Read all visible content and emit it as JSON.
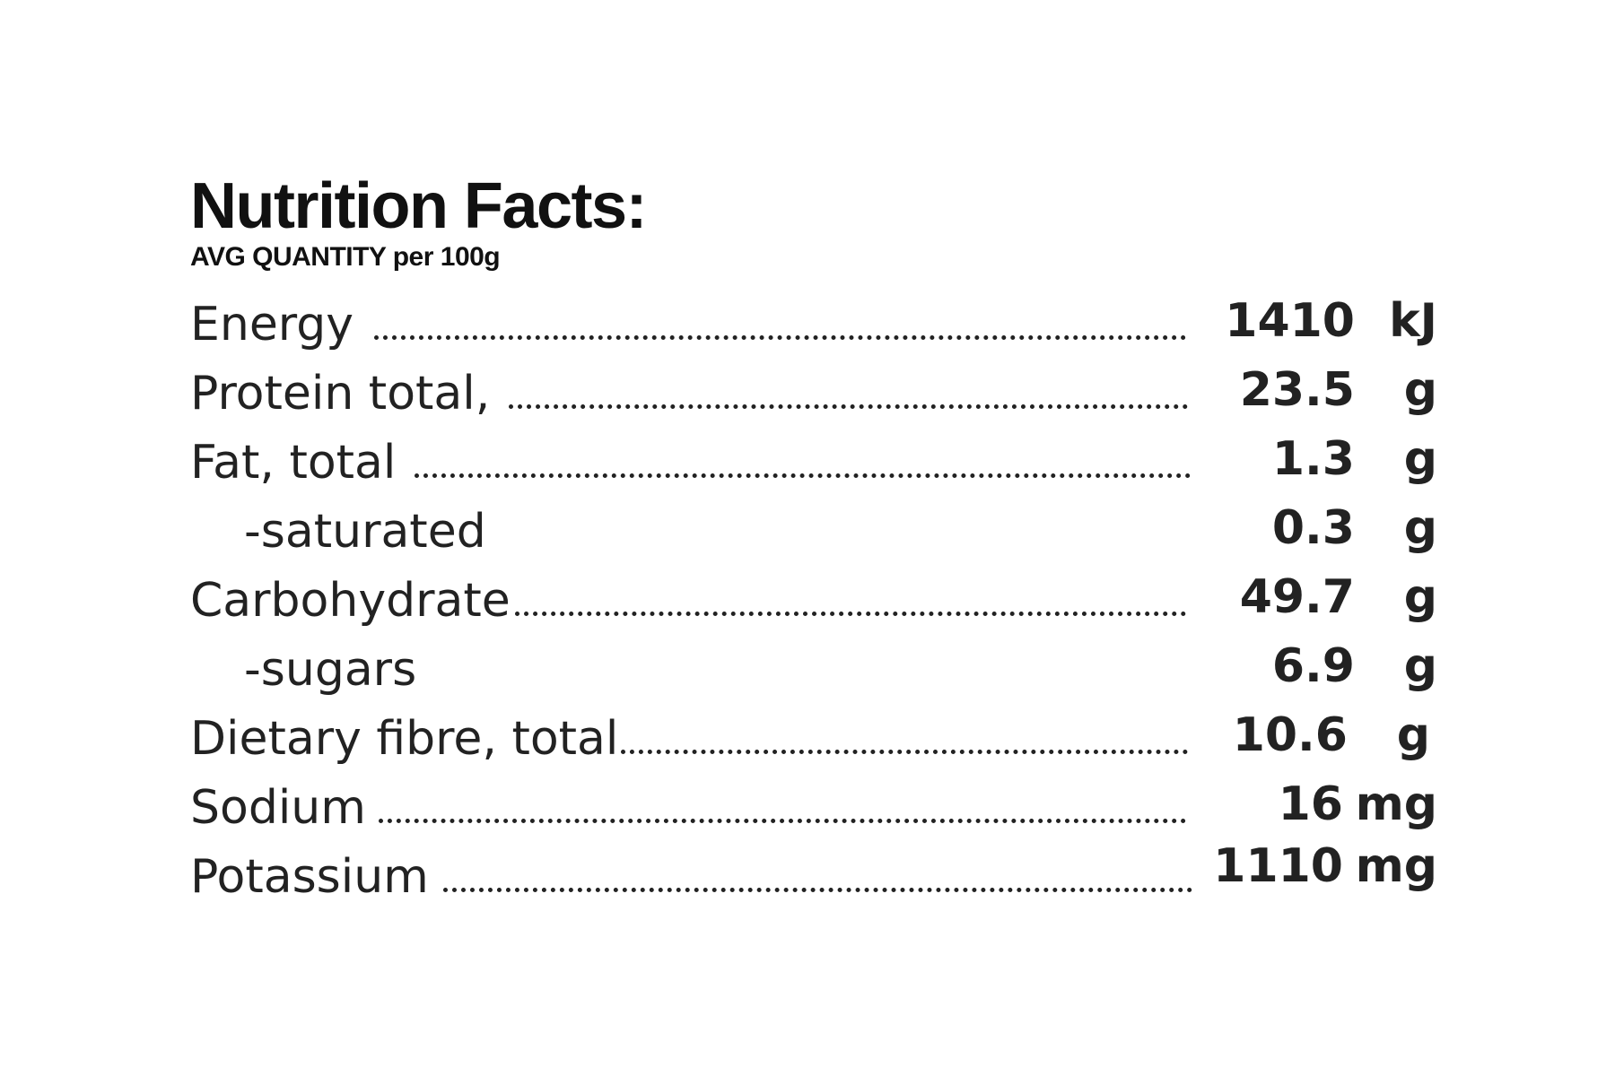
{
  "header": {
    "title": "Nutrition Facts:",
    "subtitle": "AVG QUANTITY per 100g"
  },
  "nutrients": [
    {
      "label": "Energy",
      "value": "1410",
      "unit": "kJ"
    },
    {
      "label": "Protein total,",
      "value": "23.5",
      "unit": "g"
    },
    {
      "label": "Fat, total",
      "value": "1.3",
      "unit": "g"
    },
    {
      "label": "-saturated",
      "value": "0.3",
      "unit": "g"
    },
    {
      "label": "Carbohydrate",
      "value": "49.7",
      "unit": "g"
    },
    {
      "label": "-sugars",
      "value": "6.9",
      "unit": "g"
    },
    {
      "label": "Dietary fibre, total",
      "value": "10.6",
      "unit": "g"
    },
    {
      "label": "Sodium",
      "value": "16",
      "unit": "mg"
    },
    {
      "label": "Potassium",
      "value": "1110",
      "unit": "mg"
    }
  ]
}
